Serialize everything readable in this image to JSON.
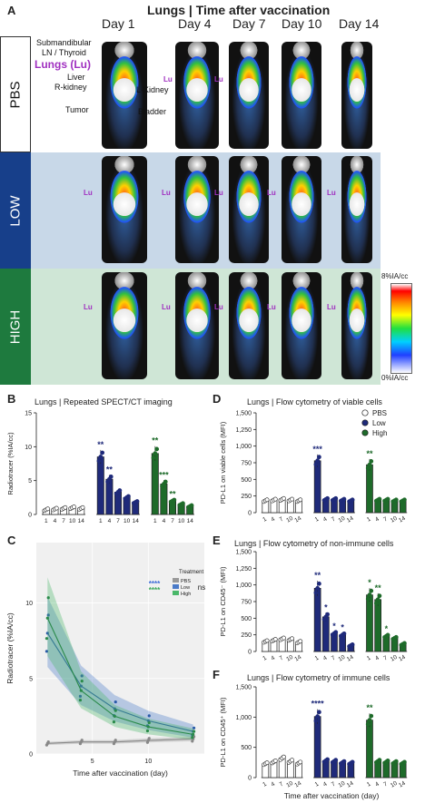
{
  "panelA": {
    "letter": "A",
    "title": "Lungs | Time after vaccination",
    "days": [
      "Day 1",
      "Day 4",
      "Day 7",
      "Day 10",
      "Day 14"
    ],
    "rows": [
      "PBS",
      "LOW",
      "HIGH"
    ],
    "lu_label": "Lu",
    "annotations": {
      "submandibular": "Submandibular",
      "ln_thyroid": "LN / Thyroid",
      "lungs": "Lungs (Lu)",
      "liver": "Liver",
      "r_kidney": "R-kidney",
      "l_kidney": "L-Kidney",
      "tumor": "Tumor",
      "bladder": "Bladder"
    },
    "colorbar": {
      "max": "8%IA/cc",
      "min": "0%IA/cc"
    }
  },
  "panelB": {
    "letter": "B",
    "title": "Lungs | Repeated SPECT/CT imaging",
    "ylabel": "Radiotracer (%IA/cc)",
    "yticks": [
      "0",
      "5",
      "10",
      "15"
    ],
    "days": [
      "1",
      "4",
      "7",
      "10",
      "14"
    ],
    "stars": [
      "**",
      "**",
      "**",
      "***",
      "**"
    ]
  },
  "panelC": {
    "letter": "C",
    "xlabel": "Time after vaccination (day)",
    "ylabel": "Radiotracer (%IA/cc)",
    "yticks": [
      "0",
      "5",
      "10"
    ],
    "xticks": [
      "5",
      "10"
    ],
    "legend_title": "Treatment",
    "legend": [
      "PBS",
      "Low",
      "High"
    ],
    "stars_low": "****",
    "stars_high": "****",
    "ns": "ns"
  },
  "panelD": {
    "letter": "D",
    "title": "Lungs | Flow cytometry of viable cells",
    "ylabel": "PD-L1 on viable cells (MFI)",
    "yticks": [
      "0",
      "250",
      "500",
      "750",
      "1,000",
      "1,250",
      "1,500"
    ],
    "days": [
      "1",
      "4",
      "7",
      "10",
      "14"
    ],
    "legend": [
      "PBS",
      "Low",
      "High"
    ],
    "stars": [
      "***",
      "**"
    ]
  },
  "panelE": {
    "letter": "E",
    "title": "Lungs | Flow cytometry of non-immune cells",
    "ylabel": "PD-L1 on CD45⁻ (MFI)",
    "yticks": [
      "0",
      "250",
      "500",
      "750",
      "1,000",
      "1,250",
      "1,500"
    ],
    "days": [
      "1",
      "4",
      "7",
      "10",
      "14"
    ],
    "stars": [
      "**",
      "*",
      "*",
      "*",
      "*",
      "**",
      "*"
    ]
  },
  "panelF": {
    "letter": "F",
    "title": "Lungs | Flow cytometry of immune cells",
    "ylabel": "PD-L1 on CD45⁺ (MFI)",
    "yticks": [
      "0",
      "500",
      "1,000",
      "1,500"
    ],
    "days": [
      "1",
      "4",
      "7",
      "10",
      "14"
    ],
    "xlabel": "Time after vaccination (day)",
    "stars": [
      "****",
      "**"
    ]
  },
  "colors": {
    "pbs": "#ffffff",
    "low": "#1f2a7a",
    "high": "#1e6b2a",
    "low_band": "#c8d8e8",
    "high_band": "#cfe6d6",
    "lu": "#a030c0"
  },
  "chart_data": [
    {
      "type": "bar",
      "title": "Lungs | Repeated SPECT/CT imaging",
      "ylabel": "Radiotracer (%IA/cc)",
      "ylim": [
        0,
        15
      ],
      "categories": [
        "1",
        "4",
        "7",
        "10",
        "14"
      ],
      "series": [
        {
          "name": "PBS",
          "values": [
            0.7,
            0.8,
            0.9,
            1.0,
            0.9
          ]
        },
        {
          "name": "Low",
          "values": [
            8.5,
            5.2,
            3.3,
            2.5,
            1.8
          ]
        },
        {
          "name": "High",
          "values": [
            9.0,
            4.5,
            2.0,
            1.5,
            1.2
          ]
        }
      ]
    },
    {
      "type": "line",
      "xlabel": "Time after vaccination (day)",
      "ylabel": "Radiotracer (%IA/cc)",
      "x": [
        1,
        4,
        7,
        10,
        14
      ],
      "ylim": [
        0,
        14
      ],
      "series": [
        {
          "name": "PBS",
          "values": [
            0.7,
            0.8,
            0.8,
            0.9,
            1.0
          ]
        },
        {
          "name": "Low",
          "values": [
            8.0,
            4.5,
            3.0,
            2.2,
            1.5
          ]
        },
        {
          "name": "High",
          "values": [
            9.0,
            4.2,
            2.5,
            1.8,
            1.3
          ]
        }
      ]
    },
    {
      "type": "bar",
      "title": "Lungs | Flow cytometry of viable cells",
      "ylabel": "PD-L1 on viable cells (MFI)",
      "ylim": [
        0,
        1500
      ],
      "categories": [
        "1",
        "4",
        "7",
        "10",
        "14"
      ],
      "series": [
        {
          "name": "PBS",
          "values": [
            180,
            190,
            200,
            190,
            180
          ]
        },
        {
          "name": "Low",
          "values": [
            780,
            200,
            200,
            190,
            180
          ]
        },
        {
          "name": "High",
          "values": [
            720,
            190,
            190,
            180,
            180
          ]
        }
      ]
    },
    {
      "type": "bar",
      "title": "Lungs | Flow cytometry of non-immune cells",
      "ylabel": "PD-L1 on CD45⁻ (MFI)",
      "ylim": [
        0,
        1500
      ],
      "categories": [
        "1",
        "4",
        "7",
        "10",
        "14"
      ],
      "series": [
        {
          "name": "PBS",
          "values": [
            150,
            170,
            190,
            180,
            140
          ]
        },
        {
          "name": "Low",
          "values": [
            950,
            520,
            270,
            250,
            90
          ]
        },
        {
          "name": "High",
          "values": [
            850,
            780,
            230,
            200,
            110
          ]
        }
      ]
    },
    {
      "type": "bar",
      "title": "Lungs | Flow cytometry of immune cells",
      "ylabel": "PD-L1 on CD45⁺ (MFI)",
      "ylim": [
        0,
        1500
      ],
      "categories": [
        "1",
        "4",
        "7",
        "10",
        "14"
      ],
      "series": [
        {
          "name": "PBS",
          "values": [
            230,
            260,
            320,
            270,
            240
          ]
        },
        {
          "name": "Low",
          "values": [
            1010,
            280,
            270,
            250,
            240
          ]
        },
        {
          "name": "High",
          "values": [
            950,
            270,
            260,
            250,
            240
          ]
        }
      ]
    }
  ]
}
